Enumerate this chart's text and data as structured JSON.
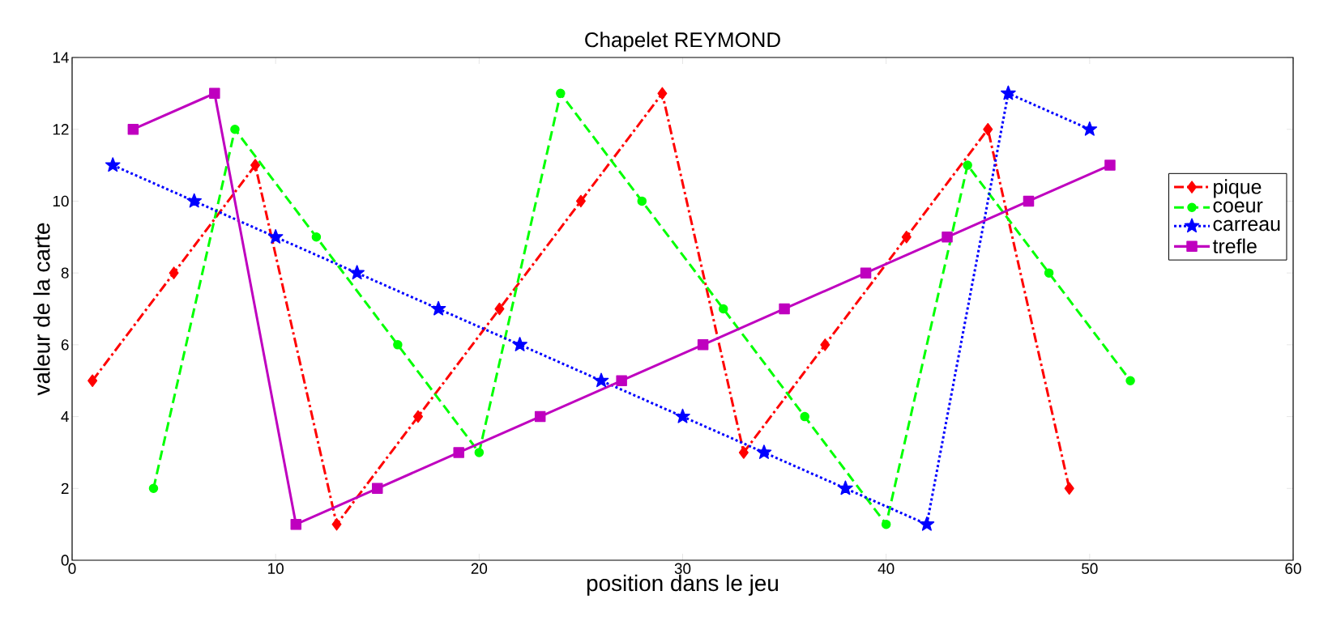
{
  "chart_data": {
    "type": "line",
    "title": "Chapelet REYMOND",
    "xlabel": "position dans le jeu",
    "ylabel": "valeur de la carte",
    "xlim": [
      0,
      60
    ],
    "xticks": [
      0,
      10,
      20,
      30,
      40,
      50,
      60
    ],
    "ylim": [
      0,
      14
    ],
    "yticks": [
      0,
      2,
      4,
      6,
      8,
      10,
      12,
      14
    ],
    "grid": false,
    "legend": "right",
    "series": [
      {
        "name": "pique",
        "color": "#ff0000",
        "marker": "diamond",
        "line_style": "dashdot",
        "x": [
          1,
          5,
          9,
          13,
          17,
          21,
          25,
          29,
          33,
          37,
          41,
          45,
          49
        ],
        "values": [
          5,
          8,
          11,
          1,
          4,
          7,
          10,
          13,
          3,
          6,
          9,
          12,
          2
        ]
      },
      {
        "name": "coeur",
        "color": "#00ff00",
        "marker": "circle",
        "line_style": "dashed",
        "x": [
          4,
          8,
          12,
          16,
          20,
          24,
          28,
          32,
          36,
          40,
          44,
          48,
          52
        ],
        "values": [
          2,
          12,
          9,
          6,
          3,
          13,
          10,
          7,
          4,
          1,
          11,
          8,
          5
        ]
      },
      {
        "name": "carreau",
        "color": "#0000ff",
        "marker": "star",
        "line_style": "dotted",
        "x": [
          2,
          6,
          10,
          14,
          18,
          22,
          26,
          30,
          34,
          38,
          42,
          46,
          50
        ],
        "values": [
          11,
          10,
          9,
          8,
          7,
          6,
          5,
          4,
          3,
          2,
          1,
          13,
          12
        ]
      },
      {
        "name": "trefle",
        "color": "#bf00bf",
        "marker": "square",
        "line_style": "solid",
        "x": [
          3,
          7,
          11,
          15,
          19,
          23,
          27,
          31,
          35,
          39,
          43,
          47,
          51
        ],
        "values": [
          12,
          13,
          1,
          2,
          3,
          4,
          5,
          6,
          7,
          8,
          9,
          10,
          11
        ]
      }
    ]
  }
}
